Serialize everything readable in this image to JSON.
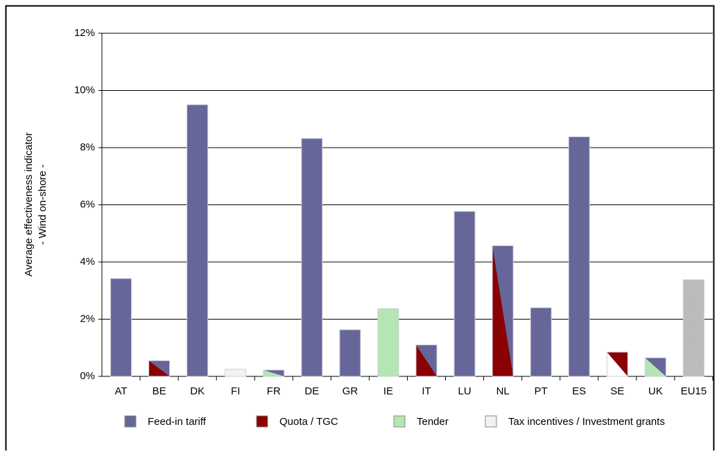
{
  "chart_data": {
    "type": "bar",
    "ylabel": [
      "Average effectiveness indicator",
      "- Wind on-shore -"
    ],
    "categories": [
      "AT",
      "BE",
      "DK",
      "FI",
      "FR",
      "DE",
      "GR",
      "IE",
      "IT",
      "LU",
      "NL",
      "PT",
      "ES",
      "SE",
      "UK",
      "EU15"
    ],
    "values": [
      3.42,
      0.55,
      9.5,
      0.25,
      0.22,
      8.32,
      1.63,
      2.37,
      1.1,
      5.77,
      4.57,
      2.4,
      8.38,
      0.85,
      0.65,
      3.38
    ],
    "fills": [
      [
        "#666699",
        "#666699"
      ],
      [
        "#8b0000",
        "#666699"
      ],
      [
        "#666699",
        "#666699"
      ],
      [
        "#f2f2f2",
        "#f2f2f2"
      ],
      [
        "#b3e6b3",
        "#666699"
      ],
      [
        "#666699",
        "#666699"
      ],
      [
        "#666699",
        "#666699"
      ],
      [
        "#b3e6b3",
        "#b3e6b3"
      ],
      [
        "#8b0000",
        "#666699"
      ],
      [
        "#666699",
        "#666699"
      ],
      [
        "#8b0000",
        "#666699"
      ],
      [
        "#666699",
        "#666699"
      ],
      [
        "#666699",
        "#666699"
      ],
      [
        "#ffffff",
        "#8b0000"
      ],
      [
        "#b3e6b3",
        "#666699"
      ],
      [
        "#bbbbbb",
        "#bbbbbb"
      ]
    ],
    "ylim": [
      0,
      12
    ],
    "yticks": [
      {
        "value": 0,
        "label": "0%"
      },
      {
        "value": 2,
        "label": "2%"
      },
      {
        "value": 4,
        "label": "4%"
      },
      {
        "value": 6,
        "label": "6%"
      },
      {
        "value": 8,
        "label": "8%"
      },
      {
        "value": 10,
        "label": "10%"
      },
      {
        "value": 12,
        "label": "12%"
      }
    ],
    "grid": true,
    "legend": [
      {
        "name": "Feed-in tariff",
        "color": "#666699"
      },
      {
        "name": "Quota / TGC",
        "color": "#8b0000"
      },
      {
        "name": "Tender",
        "color": "#b3e6b3"
      },
      {
        "name": "Tax incentives / Investment grants",
        "color": "#f2f2f2"
      }
    ]
  }
}
